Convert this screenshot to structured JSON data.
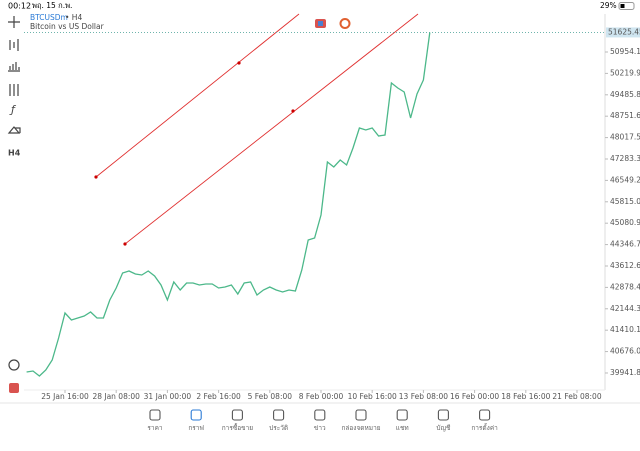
{
  "status_bar": {
    "time": "00:12",
    "date": "พฤ. 15 ก.พ.",
    "battery": "29%"
  },
  "header": {
    "symbol": "BTCUSDm",
    "timeframe": "• H4",
    "description": "Bitcoin vs US Dollar"
  },
  "toolbar": {
    "timeframe": "H4"
  },
  "chart_data": {
    "type": "line",
    "categories": [
      null,
      null,
      null,
      null,
      null,
      null,
      "25 Jan 16:00",
      null,
      null,
      null,
      null,
      null,
      null,
      null,
      "28 Jan 08:00",
      null,
      null,
      null,
      null,
      null,
      null,
      null,
      "31 Jan 00:00",
      null,
      null,
      null,
      null,
      null,
      null,
      null,
      "2 Feb 16:00",
      null,
      null,
      null,
      null,
      null,
      null,
      null,
      "5 Feb 08:00",
      null,
      null,
      null,
      null,
      null,
      null,
      null,
      "8 Feb 00:00",
      null,
      null,
      null,
      null,
      null,
      null,
      null,
      "10 Feb 16:00",
      null,
      null,
      null,
      null,
      null,
      null,
      null,
      "13 Feb 08:00",
      null,
      null,
      null,
      null,
      null,
      null,
      null,
      "16 Feb 00:00",
      null,
      null,
      null,
      null,
      null,
      null,
      null,
      "18 Feb 16:00",
      null,
      null,
      null,
      null,
      null,
      null,
      null,
      "21 Feb 08:00",
      null,
      null,
      null
    ],
    "values": [
      39976,
      40010,
      39839,
      40045,
      40388,
      41143,
      42000,
      41760,
      41829,
      41897,
      42035,
      41829,
      41829,
      42446,
      42858,
      43372,
      43441,
      43338,
      43304,
      43441,
      43270,
      42961,
      42446,
      43064,
      42789,
      43029,
      43029,
      42961,
      42995,
      42995,
      42858,
      42892,
      42961,
      42652,
      43029,
      43064,
      42618,
      42789,
      42892,
      42789,
      42721,
      42789,
      42755,
      43475,
      44504,
      44573,
      45362,
      47180,
      47009,
      47249,
      47077,
      47661,
      48347,
      48278,
      48347,
      48072,
      48107,
      49891,
      49719,
      49582,
      48690,
      49513,
      49993,
      51625,
      null,
      null,
      null,
      null,
      null,
      null,
      null,
      null,
      null,
      null,
      null,
      null,
      null,
      null,
      null,
      null,
      null,
      null,
      null,
      null,
      null,
      null,
      null,
      null,
      null,
      null
    ],
    "color": "#4cb88a",
    "last_price": 51625.45,
    "ylim": [
      39358,
      52258
    ],
    "yticks": [
      {
        "value": 50954.1,
        "label": "50954.10"
      },
      50219.95,
      {
        "value": 49485.8,
        "label": "49485.80"
      },
      48751.65,
      {
        "value": 48017.5,
        "label": "48017.50"
      },
      47283.35,
      {
        "value": 46549.2,
        "label": "46549.20"
      },
      45815.05,
      {
        "value": 45080.9,
        "label": "45080.90"
      },
      44346.75,
      {
        "value": 43612.6,
        "label": "43612.60"
      },
      42878.45,
      {
        "value": 42144.3,
        "label": "42144.30"
      },
      41410.15,
      {
        "value": 40676,
        "label": "40676.00"
      },
      39941.85
    ]
  },
  "bottom_nav": [
    "ราคา",
    "กราฟ",
    "การซื้อขาย",
    "ประวัติ",
    "ข่าว",
    "กล่องจดหมาย",
    "แชท",
    "บัญชี",
    "การตั้งค่า"
  ]
}
